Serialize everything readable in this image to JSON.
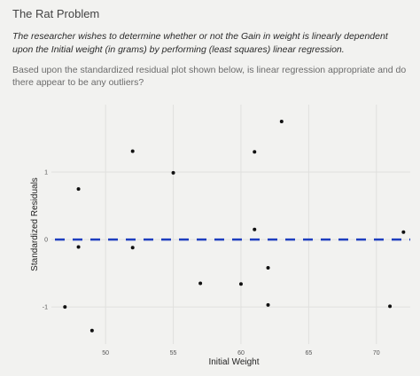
{
  "title": "The Rat Problem",
  "intro": "The researcher wishes to determine whether or not the Gain in weight is linearly dependent upon the Initial weight (in grams) by performing (least squares) linear regression.",
  "question": "Based upon the standardized residual plot shown below, is linear regression appropriate and do there appear to be any outliers?",
  "chart_data": {
    "type": "scatter",
    "xlabel": "Initial Weight",
    "ylabel": "Standardized Residuals",
    "xticks": [
      50,
      55,
      60,
      65,
      70
    ],
    "yticks": [
      -1,
      0,
      1
    ],
    "xlim": [
      46,
      72.5
    ],
    "ylim": [
      -1.55,
      2.0
    ],
    "reference_line": {
      "y": 0,
      "style": "dashed",
      "color": "#1f3fbf"
    },
    "points": [
      {
        "x": 47.0,
        "y": -1.0
      },
      {
        "x": 48.0,
        "y": 0.75
      },
      {
        "x": 48.0,
        "y": -0.11
      },
      {
        "x": 49.0,
        "y": -1.35
      },
      {
        "x": 52.0,
        "y": 1.31
      },
      {
        "x": 52.0,
        "y": -0.12
      },
      {
        "x": 55.0,
        "y": 0.99
      },
      {
        "x": 57.0,
        "y": -0.65
      },
      {
        "x": 60.0,
        "y": -0.66
      },
      {
        "x": 61.0,
        "y": 1.3
      },
      {
        "x": 61.0,
        "y": 0.15
      },
      {
        "x": 62.0,
        "y": -0.42
      },
      {
        "x": 62.0,
        "y": -0.97
      },
      {
        "x": 63.0,
        "y": 1.75
      },
      {
        "x": 71.0,
        "y": -0.99
      },
      {
        "x": 72.0,
        "y": 0.11
      }
    ]
  }
}
